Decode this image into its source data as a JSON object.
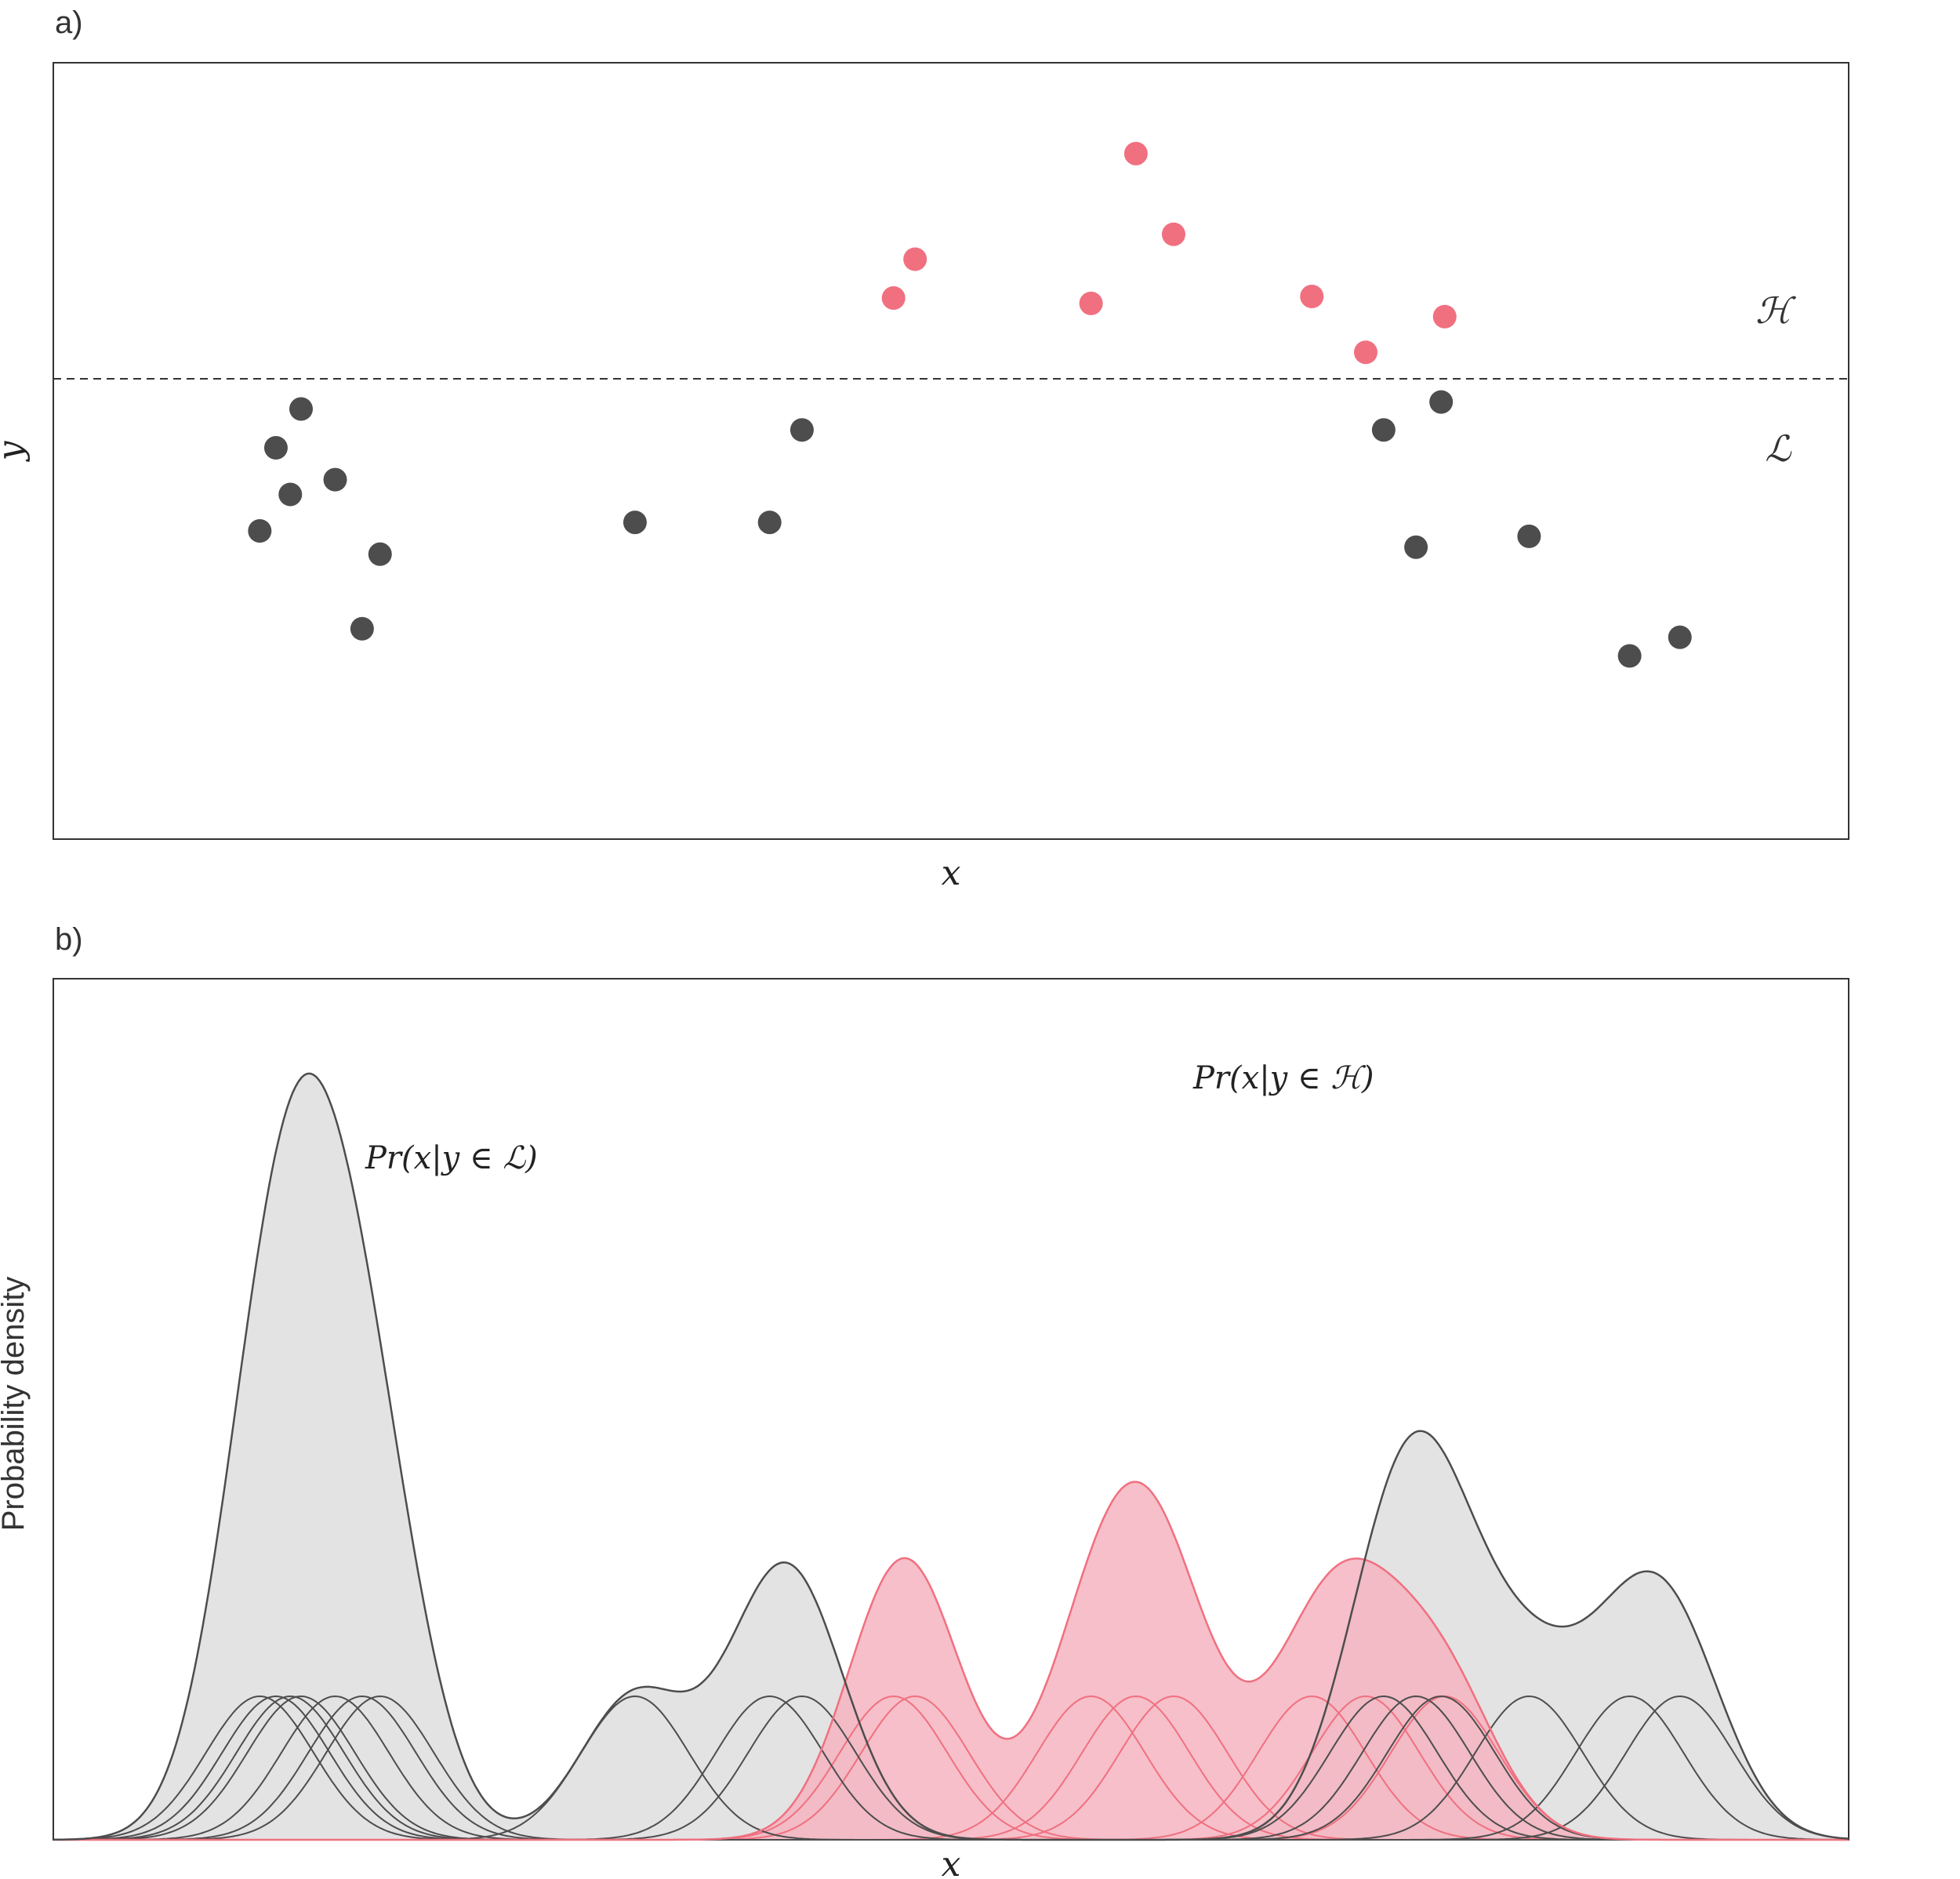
{
  "panels": {
    "a": {
      "label": "a)",
      "xlabel": "x",
      "ylabel": "y",
      "upper_region": "ℋ",
      "lower_region": "ℒ"
    },
    "b": {
      "label": "b)",
      "xlabel": "x",
      "ylabel": "Probability density"
    }
  },
  "colors": {
    "low": "#4d4d4d",
    "high": "#f07080",
    "low_fill": "#e3e3e3",
    "high_fill": "#f5b4bf",
    "frame": "#333333"
  },
  "chart_data": [
    {
      "type": "scatter",
      "title": "",
      "xlabel": "x",
      "ylabel": "y",
      "xlim": [
        0,
        1
      ],
      "ylim": [
        0,
        1
      ],
      "threshold": 0.593,
      "series": [
        {
          "name": "ℒ",
          "x": [
            0.115,
            0.124,
            0.132,
            0.138,
            0.157,
            0.172,
            0.182,
            0.324,
            0.399,
            0.417,
            0.741,
            0.759,
            0.773,
            0.822,
            0.878,
            0.906
          ],
          "y": [
            0.397,
            0.504,
            0.444,
            0.554,
            0.463,
            0.271,
            0.367,
            0.408,
            0.408,
            0.527,
            0.527,
            0.376,
            0.563,
            0.39,
            0.236,
            0.26
          ]
        },
        {
          "name": "ℋ",
          "x": [
            0.468,
            0.48,
            0.578,
            0.603,
            0.624,
            0.701,
            0.731,
            0.775
          ],
          "y": [
            0.697,
            0.747,
            0.69,
            0.883,
            0.779,
            0.699,
            0.627,
            0.673
          ]
        }
      ]
    },
    {
      "type": "area",
      "title": "",
      "xlabel": "x",
      "ylabel": "Probability density",
      "xlim": [
        0,
        1
      ],
      "ylim": [
        0,
        0.45
      ],
      "series": [
        {
          "name": "Pr(x|y ∈ ℒ)",
          "kernel_centers": [
            0.115,
            0.124,
            0.132,
            0.138,
            0.157,
            0.172,
            0.182,
            0.324,
            0.399,
            0.417,
            0.741,
            0.759,
            0.773,
            0.822,
            0.878,
            0.906
          ],
          "kernel_sd": 0.03,
          "kernel_peak": 0.075
        },
        {
          "name": "Pr(x|y ∈ ℋ)",
          "kernel_centers": [
            0.468,
            0.48,
            0.578,
            0.603,
            0.624,
            0.701,
            0.731,
            0.775
          ],
          "kernel_sd": 0.03,
          "kernel_peak": 0.075
        }
      ],
      "annotations": [
        {
          "text": "Pr(x|y ∈ ℒ)",
          "series": "Pr(x|y ∈ ℒ)"
        },
        {
          "text": "Pr(x|y ∈ ℋ)",
          "series": "Pr(x|y ∈ ℋ)"
        }
      ]
    }
  ]
}
